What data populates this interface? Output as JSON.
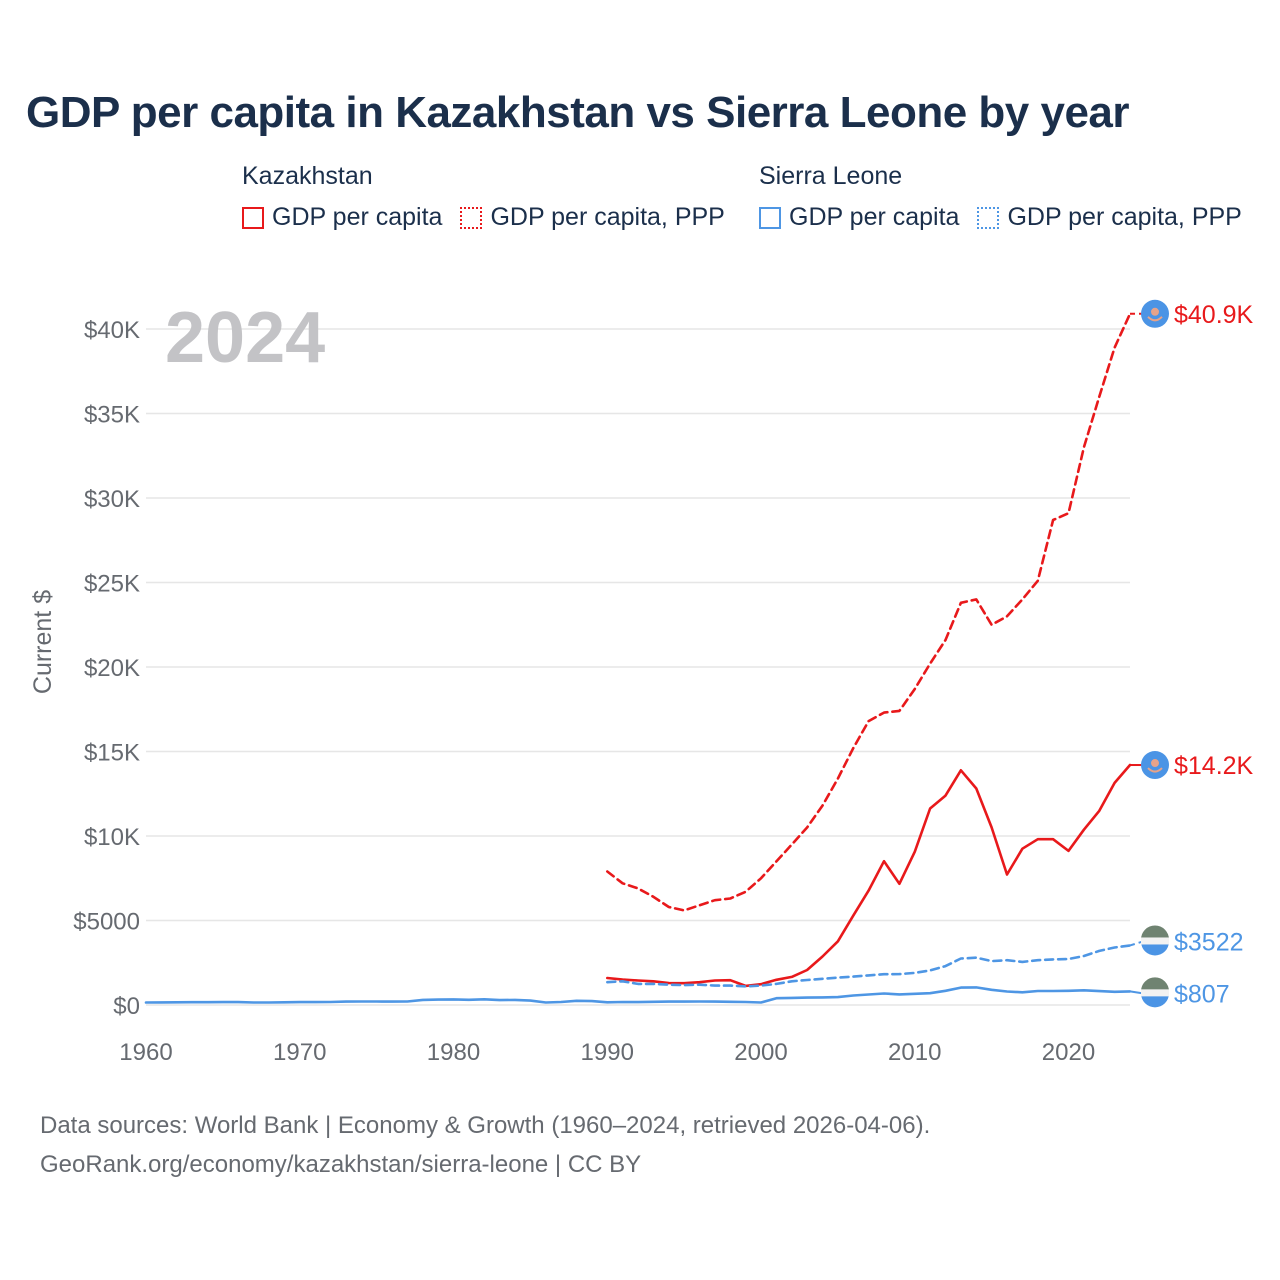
{
  "title": "GDP per capita in Kazakhstan vs Sierra Leone by year",
  "legend": {
    "groups": [
      {
        "name": "Kazakhstan",
        "color": "#e8191b",
        "items": [
          {
            "label": "GDP per capita",
            "style": "solid"
          },
          {
            "label": "GDP per capita, PPP",
            "style": "dotted"
          }
        ]
      },
      {
        "name": "Sierra Leone",
        "color": "#4e96e4",
        "items": [
          {
            "label": "GDP per capita",
            "style": "solid"
          },
          {
            "label": "GDP per capita, PPP",
            "style": "dotted"
          }
        ]
      }
    ]
  },
  "chart_data": {
    "type": "line",
    "title": "GDP per capita in Kazakhstan vs Sierra Leone by year",
    "year_label": "2024",
    "xlabel": "",
    "ylabel": "Current $",
    "xlim": [
      1960,
      2024
    ],
    "ylim": [
      0,
      42000
    ],
    "x_ticks": [
      1960,
      1970,
      1980,
      1990,
      2000,
      2010,
      2020
    ],
    "y_ticks": [
      {
        "value": 0,
        "label": "$0"
      },
      {
        "value": 5000,
        "label": "$5000"
      },
      {
        "value": 10000,
        "label": "$10K"
      },
      {
        "value": 15000,
        "label": "$15K"
      },
      {
        "value": 20000,
        "label": "$20K"
      },
      {
        "value": 25000,
        "label": "$25K"
      },
      {
        "value": 30000,
        "label": "$30K"
      },
      {
        "value": 35000,
        "label": "$35K"
      },
      {
        "value": 40000,
        "label": "$40K"
      }
    ],
    "series": [
      {
        "name": "Kazakhstan GDP per capita, PPP",
        "color": "#e8191b",
        "dash": "dashed",
        "end_label": "$40.9K",
        "flag": "kazakhstan-flag-icon",
        "x": [
          1990,
          1991,
          1992,
          1993,
          1994,
          1995,
          1996,
          1997,
          1998,
          1999,
          2000,
          2001,
          2002,
          2003,
          2004,
          2005,
          2006,
          2007,
          2008,
          2009,
          2010,
          2011,
          2012,
          2013,
          2014,
          2015,
          2016,
          2017,
          2018,
          2019,
          2020,
          2021,
          2022,
          2023,
          2024
        ],
        "values": [
          7900,
          7200,
          6900,
          6400,
          5800,
          5600,
          5900,
          6200,
          6300,
          6700,
          7500,
          8500,
          9500,
          10500,
          11800,
          13400,
          15200,
          16800,
          17300,
          17400,
          18700,
          20200,
          21600,
          23800,
          24000,
          22500,
          23000,
          24000,
          25100,
          28700,
          29100,
          33000,
          36000,
          38900,
          40900
        ]
      },
      {
        "name": "Kazakhstan GDP per capita",
        "color": "#e8191b",
        "dash": "solid",
        "end_label": "$14.2K",
        "flag": "kazakhstan-flag-icon",
        "x": [
          1990,
          1991,
          1992,
          1993,
          1994,
          1995,
          1996,
          1997,
          1998,
          1999,
          2000,
          2001,
          2002,
          2003,
          2004,
          2005,
          2006,
          2007,
          2008,
          2009,
          2010,
          2011,
          2012,
          2013,
          2014,
          2015,
          2016,
          2017,
          2018,
          2019,
          2020,
          2021,
          2022,
          2023,
          2024
        ],
        "values": [
          1600,
          1500,
          1450,
          1400,
          1300,
          1290,
          1350,
          1450,
          1470,
          1130,
          1230,
          1490,
          1660,
          2070,
          2870,
          3770,
          5290,
          6770,
          8510,
          7170,
          9070,
          11630,
          12390,
          13890,
          12810,
          10510,
          7720,
          9250,
          9810,
          9810,
          9120,
          10370,
          11490,
          13140,
          14200
        ]
      },
      {
        "name": "Sierra Leone GDP per capita, PPP",
        "color": "#4e96e4",
        "dash": "dashed",
        "end_label": "$3522",
        "flag": "sierra-leone-flag-icon",
        "x": [
          1990,
          1991,
          1992,
          1993,
          1994,
          1995,
          1996,
          1997,
          1998,
          1999,
          2000,
          2001,
          2002,
          2003,
          2004,
          2005,
          2006,
          2007,
          2008,
          2009,
          2010,
          2011,
          2012,
          2013,
          2014,
          2015,
          2016,
          2017,
          2018,
          2019,
          2020,
          2021,
          2022,
          2023,
          2024
        ],
        "values": [
          1350,
          1400,
          1250,
          1250,
          1200,
          1180,
          1200,
          1150,
          1150,
          1100,
          1150,
          1250,
          1400,
          1480,
          1550,
          1620,
          1680,
          1750,
          1820,
          1830,
          1900,
          2050,
          2300,
          2750,
          2800,
          2600,
          2650,
          2550,
          2650,
          2700,
          2720,
          2900,
          3200,
          3400,
          3522
        ]
      },
      {
        "name": "Sierra Leone GDP per capita",
        "color": "#4e96e4",
        "dash": "solid",
        "end_label": "$807",
        "flag": "sierra-leone-flag-icon",
        "x": [
          1960,
          1961,
          1962,
          1963,
          1964,
          1965,
          1966,
          1967,
          1968,
          1969,
          1970,
          1971,
          1972,
          1973,
          1974,
          1975,
          1976,
          1977,
          1978,
          1979,
          1980,
          1981,
          1982,
          1983,
          1984,
          1985,
          1986,
          1987,
          1988,
          1989,
          1990,
          1991,
          1992,
          1993,
          1994,
          1995,
          1996,
          1997,
          1998,
          1999,
          2000,
          2001,
          2002,
          2003,
          2004,
          2005,
          2006,
          2007,
          2008,
          2009,
          2010,
          2011,
          2012,
          2013,
          2014,
          2015,
          2016,
          2017,
          2018,
          2019,
          2020,
          2021,
          2022,
          2023,
          2024
        ],
        "values": [
          150,
          155,
          160,
          165,
          165,
          170,
          170,
          150,
          150,
          160,
          170,
          170,
          175,
          200,
          210,
          210,
          200,
          210,
          300,
          320,
          330,
          310,
          340,
          290,
          300,
          260,
          150,
          180,
          250,
          230,
          160,
          180,
          170,
          190,
          200,
          200,
          210,
          200,
          190,
          180,
          150,
          400,
          420,
          440,
          450,
          470,
          560,
          620,
          680,
          630,
          660,
          700,
          840,
          1030,
          1040,
          900,
          800,
          750,
          830,
          830,
          840,
          870,
          820,
          780,
          807
        ]
      }
    ]
  },
  "footer": {
    "line1": "Data sources: World Bank | Economy & Growth (1960–2024, retrieved 2026-04-06).",
    "line2": "GeoRank.org/economy/kazakhstan/sierra-leone | CC BY"
  }
}
